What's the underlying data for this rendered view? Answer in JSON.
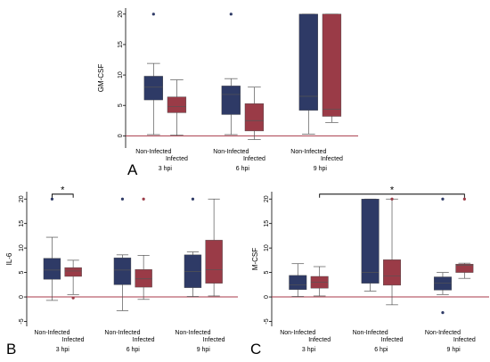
{
  "colors": {
    "non_infected": "#2e3a66",
    "infected": "#9a3b47",
    "reference_line": "#a83a4a"
  },
  "chart_data": [
    {
      "panel": "A",
      "type": "box",
      "ylabel": "GM-CSF",
      "ylim": [
        -2,
        21
      ],
      "yticks": [
        0,
        5,
        10,
        15,
        20
      ],
      "groups": [
        "3 hpi",
        "6 hpi",
        "9 hpi"
      ],
      "series_labels": [
        "Non-Infected",
        "Infected"
      ],
      "boxes": [
        {
          "group": 0,
          "series": 0,
          "min": 0.2,
          "q1": 5.9,
          "median": 8.0,
          "q3": 9.8,
          "max": 11.9,
          "outliers": [
            20.0
          ]
        },
        {
          "group": 0,
          "series": 1,
          "min": 0.1,
          "q1": 3.8,
          "median": 4.8,
          "q3": 6.4,
          "max": 9.2,
          "outliers": []
        },
        {
          "group": 1,
          "series": 0,
          "min": 0.2,
          "q1": 3.5,
          "median": 6.8,
          "q3": 8.2,
          "max": 9.4,
          "outliers": [
            20.0
          ]
        },
        {
          "group": 1,
          "series": 1,
          "min": -0.6,
          "q1": 0.8,
          "median": 2.5,
          "q3": 5.3,
          "max": 8.0,
          "outliers": []
        },
        {
          "group": 2,
          "series": 0,
          "min": 0.3,
          "q1": 4.2,
          "median": 6.5,
          "q3": 20.0,
          "max": 20.0,
          "outliers": []
        },
        {
          "group": 2,
          "series": 1,
          "min": 2.2,
          "q1": 3.2,
          "median": 4.4,
          "q3": 20.0,
          "max": 20.0,
          "outliers": []
        }
      ],
      "significance": []
    },
    {
      "panel": "B",
      "type": "box",
      "ylabel": "IL-6",
      "ylim": [
        -6,
        21.5
      ],
      "yticks": [
        -5,
        0,
        5,
        10,
        15,
        20
      ],
      "groups": [
        "3 hpi",
        "6 hpi",
        "9 hpi"
      ],
      "series_labels": [
        "Non-Infected",
        "Infected"
      ],
      "boxes": [
        {
          "group": 0,
          "series": 0,
          "min": -0.7,
          "q1": 3.6,
          "median": 5.5,
          "q3": 7.9,
          "max": 12.2,
          "outliers": [
            20.0
          ]
        },
        {
          "group": 0,
          "series": 1,
          "min": 0.5,
          "q1": 4.2,
          "median": 5.3,
          "q3": 6.0,
          "max": 7.5,
          "outliers": [
            -0.2
          ]
        },
        {
          "group": 1,
          "series": 0,
          "min": -2.8,
          "q1": 2.5,
          "median": 5.5,
          "q3": 8.0,
          "max": 8.6,
          "outliers": [
            20.0
          ]
        },
        {
          "group": 1,
          "series": 1,
          "min": -0.5,
          "q1": 2.0,
          "median": 3.7,
          "q3": 5.6,
          "max": 8.5,
          "outliers": [
            20.0
          ]
        },
        {
          "group": 2,
          "series": 0,
          "min": 0.1,
          "q1": 1.9,
          "median": 5.2,
          "q3": 8.6,
          "max": 9.2,
          "outliers": [
            20.0
          ]
        },
        {
          "group": 2,
          "series": 1,
          "min": 0.2,
          "q1": 2.8,
          "median": 5.6,
          "q3": 11.6,
          "max": 20.0,
          "outliers": []
        }
      ],
      "significance": [
        {
          "label": "*",
          "from": {
            "group": 0,
            "series": 0
          },
          "to": {
            "group": 0,
            "series": 1
          },
          "y": 21.0
        }
      ]
    },
    {
      "panel": "C",
      "type": "box",
      "ylabel": "M-CSF",
      "ylim": [
        -6,
        21.5
      ],
      "yticks": [
        -5,
        0,
        5,
        10,
        15,
        20
      ],
      "groups": [
        "3 hpi",
        "6 hpi",
        "9 hpi"
      ],
      "series_labels": [
        "Non-Infected",
        "Infected"
      ],
      "boxes": [
        {
          "group": 0,
          "series": 0,
          "min": 0.1,
          "q1": 1.5,
          "median": 2.5,
          "q3": 4.4,
          "max": 6.8,
          "outliers": []
        },
        {
          "group": 0,
          "series": 1,
          "min": 0.2,
          "q1": 1.8,
          "median": 3.0,
          "q3": 4.2,
          "max": 6.2,
          "outliers": []
        },
        {
          "group": 1,
          "series": 0,
          "min": 1.2,
          "q1": 2.8,
          "median": 5.0,
          "q3": 20.0,
          "max": 20.0,
          "outliers": []
        },
        {
          "group": 1,
          "series": 1,
          "min": -1.6,
          "q1": 2.4,
          "median": 4.3,
          "q3": 7.6,
          "max": 20.0,
          "outliers": [
            20.0
          ]
        },
        {
          "group": 2,
          "series": 0,
          "min": 0.5,
          "q1": 1.4,
          "median": 2.8,
          "q3": 4.1,
          "max": 5.0,
          "outliers": [
            20.0,
            -3.2
          ]
        },
        {
          "group": 2,
          "series": 1,
          "min": 3.8,
          "q1": 5.0,
          "median": 6.5,
          "q3": 6.7,
          "max": 6.9,
          "outliers": [
            20.0
          ]
        }
      ],
      "significance": [
        {
          "label": "*",
          "from": {
            "group": 0,
            "series": 1
          },
          "to": {
            "group": 2,
            "series": 1
          },
          "y": 21.0
        }
      ]
    }
  ]
}
